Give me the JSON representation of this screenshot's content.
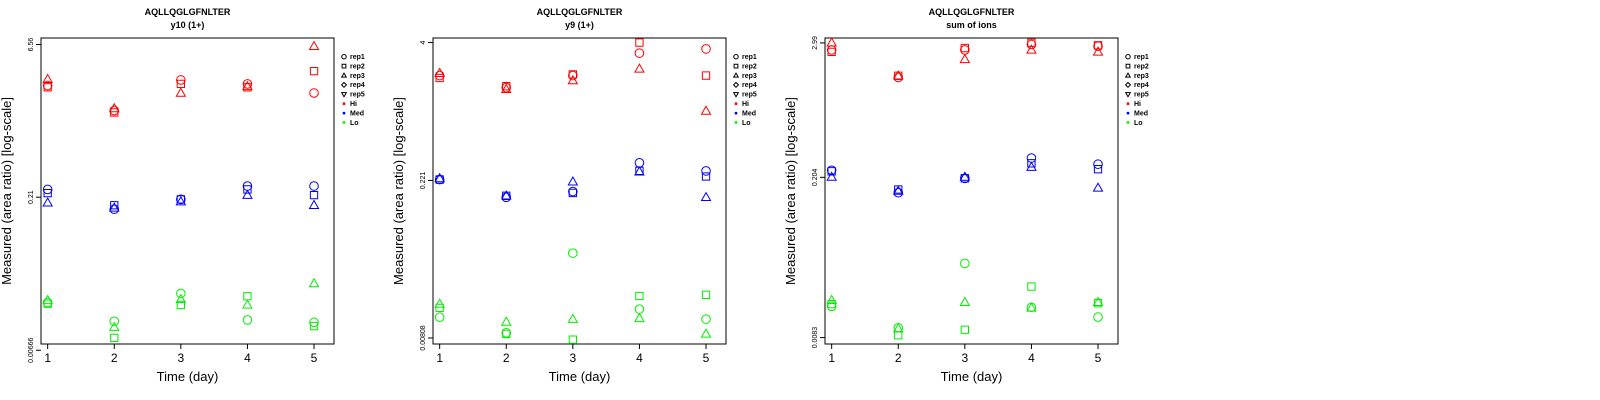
{
  "colors": {
    "Hi": "#ff0000",
    "Med": "#0000ff",
    "Lo": "#00ee00"
  },
  "legend": {
    "reps": [
      {
        "label": "rep1",
        "shape": "circle"
      },
      {
        "label": "rep2",
        "shape": "square"
      },
      {
        "label": "rep3",
        "shape": "triangle-up"
      },
      {
        "label": "rep4",
        "shape": "diamond"
      },
      {
        "label": "rep5",
        "shape": "triangle-down"
      }
    ],
    "groups": [
      {
        "label": "Hi",
        "color": "#ff0000"
      },
      {
        "label": "Med",
        "color": "#0000ff"
      },
      {
        "label": "Lo",
        "color": "#00ee00"
      }
    ]
  },
  "chart_data": [
    {
      "type": "scatter",
      "title": "AQLLQGLGFNLTER",
      "subtitle": "y10 (1+)",
      "xlabel": "Time (day)",
      "ylabel": "Measured (area ratio) [log-scale]",
      "log_y": true,
      "xlim": [
        0.9,
        5.3
      ],
      "ylim": [
        0.00767,
        7.6
      ],
      "xticks": [
        "1",
        "2",
        "3",
        "4",
        "5"
      ],
      "yticks": [
        {
          "value": 6.56,
          "label": "6.56"
        },
        {
          "value": 0.21,
          "label": "0.21"
        },
        {
          "value": 0.00666,
          "label": "0.00666"
        }
      ],
      "legend_position": "right",
      "series": [
        {
          "name": "Hi",
          "rep": "rep1",
          "x": [
            1,
            2,
            3,
            4,
            5
          ],
          "y": [
            2.6,
            1.48,
            2.95,
            2.7,
            2.2
          ]
        },
        {
          "name": "Hi",
          "rep": "rep2",
          "x": [
            1,
            2,
            3,
            4,
            5
          ],
          "y": [
            2.5,
            1.42,
            2.7,
            2.5,
            3.6
          ]
        },
        {
          "name": "Hi",
          "rep": "rep3",
          "x": [
            1,
            2,
            3,
            4,
            5
          ],
          "y": [
            3.0,
            1.55,
            2.2,
            2.55,
            6.3
          ]
        },
        {
          "name": "Med",
          "rep": "rep1",
          "x": [
            1,
            2,
            3,
            4,
            5
          ],
          "y": [
            0.25,
            0.16,
            0.2,
            0.27,
            0.27
          ]
        },
        {
          "name": "Med",
          "rep": "rep2",
          "x": [
            1,
            2,
            3,
            4,
            5
          ],
          "y": [
            0.23,
            0.175,
            0.2,
            0.25,
            0.22
          ]
        },
        {
          "name": "Med",
          "rep": "rep3",
          "x": [
            1,
            2,
            3,
            4,
            5
          ],
          "y": [
            0.185,
            0.165,
            0.19,
            0.22,
            0.175
          ]
        },
        {
          "name": "Lo",
          "rep": "rep1",
          "x": [
            1,
            2,
            3,
            4,
            5
          ],
          "y": [
            0.0195,
            0.0128,
            0.024,
            0.0132,
            0.0125
          ]
        },
        {
          "name": "Lo",
          "rep": "rep2",
          "x": [
            1,
            2,
            3,
            4,
            5
          ],
          "y": [
            0.019,
            0.0088,
            0.0185,
            0.0225,
            0.0115
          ]
        },
        {
          "name": "Lo",
          "rep": "rep3",
          "x": [
            1,
            2,
            3,
            4,
            5
          ],
          "y": [
            0.0205,
            0.0112,
            0.021,
            0.0185,
            0.03
          ]
        }
      ]
    },
    {
      "type": "scatter",
      "title": "AQLLQGLGFNLTER",
      "subtitle": "y9 (1+)",
      "xlabel": "Time (day)",
      "ylabel": "Measured (area ratio) [log-scale]",
      "log_y": true,
      "xlim": [
        0.9,
        5.3
      ],
      "ylim": [
        0.00712,
        4.4
      ],
      "xticks": [
        "1",
        "2",
        "3",
        "4",
        "5"
      ],
      "yticks": [
        {
          "value": 4,
          "label": "4"
        },
        {
          "value": 0.221,
          "label": "0.221"
        },
        {
          "value": 0.00808,
          "label": "0.00808"
        }
      ],
      "legend_position": "right",
      "series": [
        {
          "name": "Hi",
          "rep": "rep1",
          "x": [
            1,
            2,
            3,
            4,
            5
          ],
          "y": [
            2.0,
            1.55,
            2.0,
            3.2,
            3.5
          ]
        },
        {
          "name": "Hi",
          "rep": "rep2",
          "x": [
            1,
            2,
            3,
            4,
            5
          ],
          "y": [
            1.9,
            1.6,
            2.05,
            4.0,
            2.0
          ]
        },
        {
          "name": "Hi",
          "rep": "rep3",
          "x": [
            1,
            2,
            3,
            4,
            5
          ],
          "y": [
            2.1,
            1.5,
            1.8,
            2.3,
            0.95
          ]
        },
        {
          "name": "Med",
          "rep": "rep1",
          "x": [
            1,
            2,
            3,
            4,
            5
          ],
          "y": [
            0.225,
            0.155,
            0.175,
            0.32,
            0.27
          ]
        },
        {
          "name": "Med",
          "rep": "rep2",
          "x": [
            1,
            2,
            3,
            4,
            5
          ],
          "y": [
            0.225,
            0.16,
            0.17,
            0.27,
            0.24
          ]
        },
        {
          "name": "Med",
          "rep": "rep3",
          "x": [
            1,
            2,
            3,
            4,
            5
          ],
          "y": [
            0.23,
            0.16,
            0.215,
            0.265,
            0.155
          ]
        },
        {
          "name": "Lo",
          "rep": "rep1",
          "x": [
            1,
            2,
            3,
            4,
            5
          ],
          "y": [
            0.0125,
            0.009,
            0.048,
            0.0148,
            0.012
          ]
        },
        {
          "name": "Lo",
          "rep": "rep2",
          "x": [
            1,
            2,
            3,
            4,
            5
          ],
          "y": [
            0.0152,
            0.0088,
            0.0078,
            0.0195,
            0.02
          ]
        },
        {
          "name": "Lo",
          "rep": "rep3",
          "x": [
            1,
            2,
            3,
            4,
            5
          ],
          "y": [
            0.0165,
            0.0113,
            0.012,
            0.0122,
            0.0088
          ]
        }
      ]
    },
    {
      "type": "scatter",
      "title": "AQLLQGLGFNLTER",
      "subtitle": "sum of ions",
      "xlabel": "Time (day)",
      "ylabel": "Measured (area ratio) [log-scale]",
      "log_y": true,
      "xlim": [
        0.9,
        5.3
      ],
      "ylim": [
        0.0073,
        3.3
      ],
      "xticks": [
        "1",
        "2",
        "3",
        "4",
        "5"
      ],
      "yticks": [
        {
          "value": 2.99,
          "label": "2.99"
        },
        {
          "value": 0.204,
          "label": "0.204"
        },
        {
          "value": 0.0083,
          "label": "0.0083"
        }
      ],
      "legend_position": "right",
      "series": [
        {
          "name": "Hi",
          "rep": "rep1",
          "x": [
            1,
            2,
            3,
            4,
            5
          ],
          "y": [
            2.6,
            1.5,
            2.6,
            2.9,
            2.8
          ]
        },
        {
          "name": "Hi",
          "rep": "rep2",
          "x": [
            1,
            2,
            3,
            4,
            5
          ],
          "y": [
            2.5,
            1.55,
            2.7,
            3.0,
            2.85
          ]
        },
        {
          "name": "Hi",
          "rep": "rep3",
          "x": [
            1,
            2,
            3,
            4,
            5
          ],
          "y": [
            3.0,
            1.55,
            2.15,
            2.6,
            2.5
          ]
        },
        {
          "name": "Med",
          "rep": "rep1",
          "x": [
            1,
            2,
            3,
            4,
            5
          ],
          "y": [
            0.235,
            0.15,
            0.2,
            0.3,
            0.265
          ]
        },
        {
          "name": "Med",
          "rep": "rep2",
          "x": [
            1,
            2,
            3,
            4,
            5
          ],
          "y": [
            0.23,
            0.16,
            0.2,
            0.27,
            0.24
          ]
        },
        {
          "name": "Med",
          "rep": "rep3",
          "x": [
            1,
            2,
            3,
            4,
            5
          ],
          "y": [
            0.205,
            0.155,
            0.205,
            0.25,
            0.165
          ]
        },
        {
          "name": "Lo",
          "rep": "rep1",
          "x": [
            1,
            2,
            3,
            4,
            5
          ],
          "y": [
            0.0155,
            0.0101,
            0.0365,
            0.0152,
            0.0125
          ]
        },
        {
          "name": "Lo",
          "rep": "rep2",
          "x": [
            1,
            2,
            3,
            4,
            5
          ],
          "y": [
            0.0162,
            0.0087,
            0.0097,
            0.023,
            0.0165
          ]
        },
        {
          "name": "Lo",
          "rep": "rep3",
          "x": [
            1,
            2,
            3,
            4,
            5
          ],
          "y": [
            0.0175,
            0.0099,
            0.0168,
            0.015,
            0.0168
          ]
        }
      ]
    }
  ]
}
